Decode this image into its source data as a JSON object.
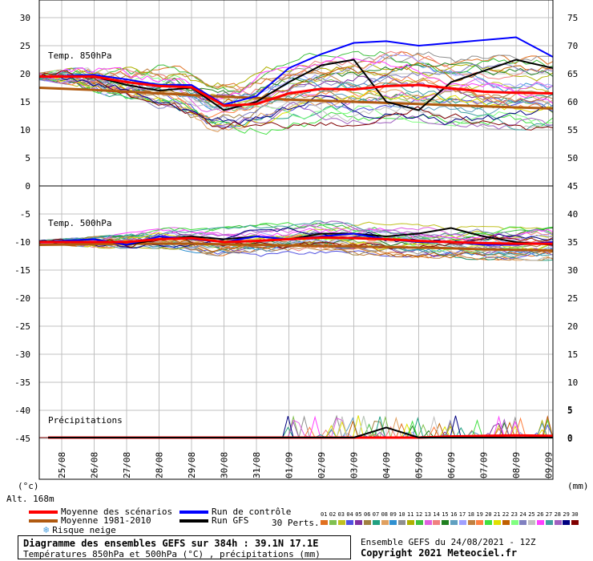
{
  "chart_data": [
    {
      "type": "line",
      "label": "Temp. 850hPa",
      "y_left_ticks": [
        "30",
        "25",
        "20",
        "15",
        "10",
        "5",
        "0"
      ],
      "y_right_ticks": [
        "75",
        "70",
        "65",
        "60",
        "55",
        "50",
        "45"
      ],
      "ylim": [
        0,
        30
      ],
      "x": [
        "25/08",
        "26/08",
        "27/08",
        "28/08",
        "29/08",
        "30/08",
        "31/08",
        "01/09",
        "02/09",
        "03/09",
        "04/09",
        "05/09",
        "06/09",
        "07/09",
        "08/09",
        "09/09"
      ],
      "series": [
        {
          "name": "Moyenne des scénarios",
          "color": "#ff0000",
          "values": [
            19.5,
            19.5,
            18.5,
            17.8,
            17.6,
            14.3,
            14.6,
            16.5,
            17.3,
            17.2,
            17.8,
            18.0,
            17.4,
            16.8,
            16.6,
            16.5
          ]
        },
        {
          "name": "Moyenne 1981-2010",
          "color": "#b05a10",
          "values": [
            17.5,
            17.1,
            16.8,
            16.5,
            16.2,
            15.9,
            15.7,
            15.4,
            15.2,
            15.0,
            14.8,
            14.6,
            14.4,
            14.2,
            14.0,
            13.8
          ]
        },
        {
          "name": "Run de contrôle",
          "color": "#0000ff",
          "values": [
            19.5,
            19.8,
            19.0,
            18.0,
            18.0,
            14.5,
            16.0,
            21.0,
            23.5,
            25.5,
            25.8,
            25.0,
            25.5,
            26.0,
            26.5,
            23.0
          ]
        },
        {
          "name": "Run GFS",
          "color": "#000000",
          "values": [
            19.5,
            19.5,
            18.0,
            17.0,
            17.5,
            13.5,
            15.0,
            18.5,
            21.5,
            22.5,
            15.0,
            13.5,
            18.5,
            20.5,
            22.5,
            21.0
          ]
        }
      ]
    },
    {
      "type": "line",
      "label": "Temp. 500hPa",
      "y_left_ticks": [
        "-5",
        "-10",
        "-15",
        "-20",
        "-25",
        "-30",
        "-35",
        "-40",
        "-45"
      ],
      "y_right_ticks": [
        "40",
        "35",
        "30",
        "25",
        "20",
        "15",
        "10",
        "5",
        "0"
      ],
      "ylim": [
        -50,
        -0.7
      ],
      "x": [
        "25/08",
        "26/08",
        "27/08",
        "28/08",
        "29/08",
        "30/08",
        "31/08",
        "01/09",
        "02/09",
        "03/09",
        "04/09",
        "05/09",
        "06/09",
        "07/09",
        "08/09",
        "09/09"
      ],
      "series": [
        {
          "name": "Moyenne des scénarios",
          "color": "#ff0000",
          "values": [
            -10.0,
            -10.0,
            -10.0,
            -9.5,
            -9.3,
            -10.0,
            -9.8,
            -9.5,
            -9.2,
            -9.3,
            -9.5,
            -9.8,
            -10.0,
            -10.2,
            -10.3,
            -10.3
          ]
        },
        {
          "name": "Moyenne 1981-2010",
          "color": "#b05a10",
          "values": [
            -10.5,
            -10.4,
            -10.3,
            -10.3,
            -10.3,
            -10.4,
            -10.5,
            -10.6,
            -10.7,
            -10.8,
            -10.9,
            -11.0,
            -11.1,
            -11.3,
            -11.4,
            -11.5
          ]
        },
        {
          "name": "Run de contrôle",
          "color": "#0000ff",
          "values": [
            -10.0,
            -9.5,
            -10.5,
            -9.0,
            -9.5,
            -10.0,
            -9.0,
            -9.5,
            -9.0,
            -8.5,
            -9.5,
            -10.0,
            -10.0,
            -10.5,
            -10.5,
            -10.0
          ]
        },
        {
          "name": "Run GFS",
          "color": "#000000",
          "values": [
            -10.0,
            -9.5,
            -10.5,
            -9.5,
            -9.0,
            -9.5,
            -9.0,
            -9.5,
            -8.5,
            -8.5,
            -9.0,
            -8.5,
            -7.5,
            -9.0,
            -10.0,
            -10.5
          ]
        }
      ]
    },
    {
      "type": "line",
      "label": "Précipitations",
      "y_right_ticks": [
        "5",
        "0"
      ],
      "ylim": [
        0,
        5
      ],
      "x": [
        "25/08",
        "26/08",
        "27/08",
        "28/08",
        "29/08",
        "30/08",
        "31/08",
        "01/09",
        "02/09",
        "03/09",
        "04/09",
        "05/09",
        "06/09",
        "07/09",
        "08/09",
        "09/09"
      ],
      "series": [
        {
          "name": "Moyenne des scénarios",
          "color": "#ff0000",
          "values": [
            0,
            0,
            0,
            0,
            0,
            0,
            0,
            0,
            0,
            0,
            0,
            0,
            0.2,
            0.3,
            0.4,
            0.3
          ]
        },
        {
          "name": "Run GFS",
          "color": "#000000",
          "values": [
            0,
            0,
            0,
            0,
            0,
            0,
            0,
            0,
            0,
            0,
            1.8,
            0,
            0,
            0,
            0,
            0
          ]
        }
      ]
    }
  ],
  "axes": {
    "left_unit": "(°c)",
    "right_unit": "(mm)",
    "altitude": "Alt. 168m"
  },
  "legend": {
    "mean": "Moyenne des scénarios",
    "climo": "Moyenne 1981-2010",
    "snow": "Risque neige",
    "control": "Run de contrôle",
    "gfs": "Run GFS",
    "perts_label": "30 Perts.",
    "pert_numbers": [
      "01",
      "02",
      "03",
      "04",
      "05",
      "06",
      "07",
      "08",
      "09",
      "10",
      "11",
      "12",
      "13",
      "14",
      "15",
      "16",
      "17",
      "18",
      "19",
      "20",
      "21",
      "22",
      "23",
      "24",
      "25",
      "26",
      "27",
      "28",
      "29",
      "30"
    ],
    "pert_colors": [
      "#e07020",
      "#80c050",
      "#c0c020",
      "#5050e0",
      "#8030a0",
      "#a08040",
      "#20a080",
      "#e0a060",
      "#3090d0",
      "#909090",
      "#b0b000",
      "#40c040",
      "#e060e0",
      "#f08080",
      "#208020",
      "#60a0c0",
      "#a0a0ff",
      "#c08040",
      "#ff8040",
      "#40e040",
      "#e0e000",
      "#c06000",
      "#80ff80",
      "#8080c0",
      "#c0c0c0",
      "#ff40ff",
      "#40a0a0",
      "#a060c0",
      "#000080",
      "#800000"
    ]
  },
  "title_box": {
    "line1": "Diagramme des ensembles GEFS sur 384h : 39.1N 17.1E",
    "line2": "Températures 850hPa et 500hPa (°C) , précipitations (mm)"
  },
  "info": {
    "ensemble": "Ensemble GEFS du 24/08/2021 - 12Z",
    "copyright": "Copyright 2021 Meteociel.fr"
  },
  "colors": {
    "grid": "#c0c0c0",
    "mean": "#ff0000",
    "climo": "#b05a10",
    "control": "#0000ff",
    "gfs": "#000000",
    "snow": "#4aa0e0"
  }
}
